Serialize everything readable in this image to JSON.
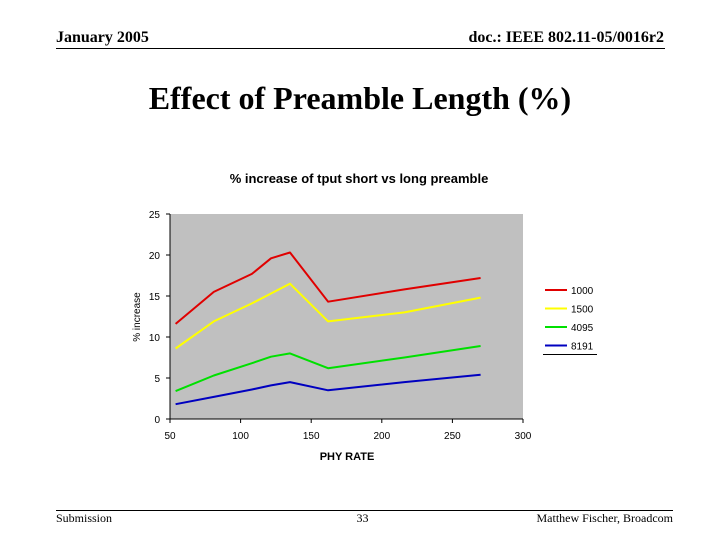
{
  "header": {
    "date": "January 2005",
    "doc": "doc.: IEEE 802.11-05/0016r2"
  },
  "slide": {
    "title": "Effect of Preamble Length (%)"
  },
  "footer": {
    "left": "Submission",
    "page": "33",
    "author": "Matthew Fischer, Broadcom"
  },
  "chart_data": {
    "type": "line",
    "title": "% increase of tput short vs long preamble",
    "xlabel": "PHY RATE",
    "ylabel": "% increase",
    "xlim": [
      50,
      300
    ],
    "ylim": [
      0,
      25
    ],
    "xticks": [
      50,
      100,
      150,
      200,
      250,
      300
    ],
    "yticks": [
      0,
      5,
      10,
      15,
      20,
      25
    ],
    "grid": false,
    "plot_background": "#c0c0c0",
    "legend_position": "right",
    "x": [
      54,
      81,
      108,
      121.5,
      135,
      162,
      216,
      270
    ],
    "series": [
      {
        "name": "1000",
        "color": "#e00000",
        "values": [
          11.6,
          15.5,
          17.7,
          19.6,
          20.3,
          14.3,
          15.8,
          17.2
        ]
      },
      {
        "name": "1500",
        "color": "#ffff00",
        "values": [
          8.6,
          11.9,
          14.1,
          15.3,
          16.5,
          11.9,
          13.0,
          14.8
        ]
      },
      {
        "name": "4095",
        "color": "#00e000",
        "values": [
          3.4,
          5.3,
          6.8,
          7.6,
          8.0,
          6.2,
          7.5,
          8.9
        ]
      },
      {
        "name": "8191",
        "color": "#0000c0",
        "values": [
          1.8,
          2.7,
          3.6,
          4.1,
          4.5,
          3.5,
          4.5,
          5.4
        ]
      }
    ]
  }
}
